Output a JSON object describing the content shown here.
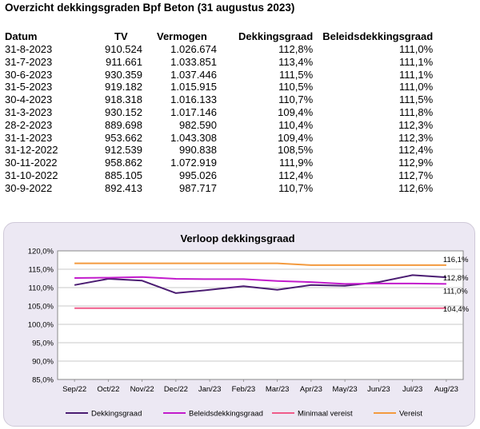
{
  "title": "Overzicht dekkingsgraden Bpf Beton (31 augustus 2023)",
  "table": {
    "headers": [
      "Datum",
      "TV",
      "Vermogen",
      "Dekkingsgraad",
      "Beleidsdekkingsgraad"
    ],
    "rows": [
      [
        "31-8-2023",
        "910.524",
        "1.026.674",
        "112,8%",
        "111,0%"
      ],
      [
        "31-7-2023",
        "911.661",
        "1.033.851",
        "113,4%",
        "111,1%"
      ],
      [
        "30-6-2023",
        "930.359",
        "1.037.446",
        "111,5%",
        "111,1%"
      ],
      [
        "31-5-2023",
        "919.182",
        "1.015.915",
        "110,5%",
        "111,0%"
      ],
      [
        "30-4-2023",
        "918.318",
        "1.016.133",
        "110,7%",
        "111,5%"
      ],
      [
        "31-3-2023",
        "930.152",
        "1.017.146",
        "109,4%",
        "111,8%"
      ],
      [
        "28-2-2023",
        "889.698",
        "982.590",
        "110,4%",
        "112,3%"
      ],
      [
        "31-1-2023",
        "953.662",
        "1.043.308",
        "109,4%",
        "112,3%"
      ],
      [
        "31-12-2022",
        "912.539",
        "990.838",
        "108,5%",
        "112,4%"
      ],
      [
        "30-11-2022",
        "958.862",
        "1.072.919",
        "111,9%",
        "112,9%"
      ],
      [
        "31-10-2022",
        "885.105",
        "995.026",
        "112,4%",
        "112,7%"
      ],
      [
        "30-9-2022",
        "892.413",
        "987.717",
        "110,7%",
        "112,6%"
      ]
    ]
  },
  "chart_data": {
    "type": "line",
    "title": "Verloop dekkingsgraad",
    "categories": [
      "Sep/22",
      "Oct/22",
      "Nov/22",
      "Dec/22",
      "Jan/23",
      "Feb/23",
      "Mar/23",
      "Apr/23",
      "May/23",
      "Jun/23",
      "Jul/23",
      "Aug/23"
    ],
    "ylim": [
      85,
      120
    ],
    "yticks": [
      "85,0%",
      "90,0%",
      "95,0%",
      "100,0%",
      "105,0%",
      "110,0%",
      "115,0%",
      "120,0%"
    ],
    "ytick_values": [
      85,
      90,
      95,
      100,
      105,
      110,
      115,
      120
    ],
    "grid": true,
    "legend_position": "bottom",
    "series": [
      {
        "name": "Dekkingsgraad",
        "color": "#4b1d72",
        "values": [
          110.7,
          112.4,
          111.9,
          108.5,
          109.4,
          110.4,
          109.4,
          110.7,
          110.5,
          111.5,
          113.4,
          112.8
        ]
      },
      {
        "name": "Beleidsdekkingsgraad",
        "color": "#c21bcc",
        "values": [
          112.6,
          112.7,
          112.9,
          112.4,
          112.3,
          112.3,
          111.8,
          111.5,
          111.0,
          111.1,
          111.1,
          111.0
        ]
      },
      {
        "name": "Minimaal vereist",
        "color": "#ef5b8a",
        "values": [
          104.4,
          104.4,
          104.4,
          104.4,
          104.4,
          104.4,
          104.4,
          104.4,
          104.4,
          104.4,
          104.4,
          104.4
        ]
      },
      {
        "name": "Vereist",
        "color": "#f39a3e",
        "values": [
          116.6,
          116.6,
          116.6,
          116.6,
          116.6,
          116.6,
          116.6,
          116.1,
          116.1,
          116.1,
          116.1,
          116.1
        ]
      }
    ],
    "end_labels": [
      {
        "text": "116,1%",
        "value": 116.1
      },
      {
        "text": "112,8%",
        "value": 112.8
      },
      {
        "text": "111,0%",
        "value": 111.0
      },
      {
        "text": "104,4%",
        "value": 104.4
      }
    ]
  }
}
